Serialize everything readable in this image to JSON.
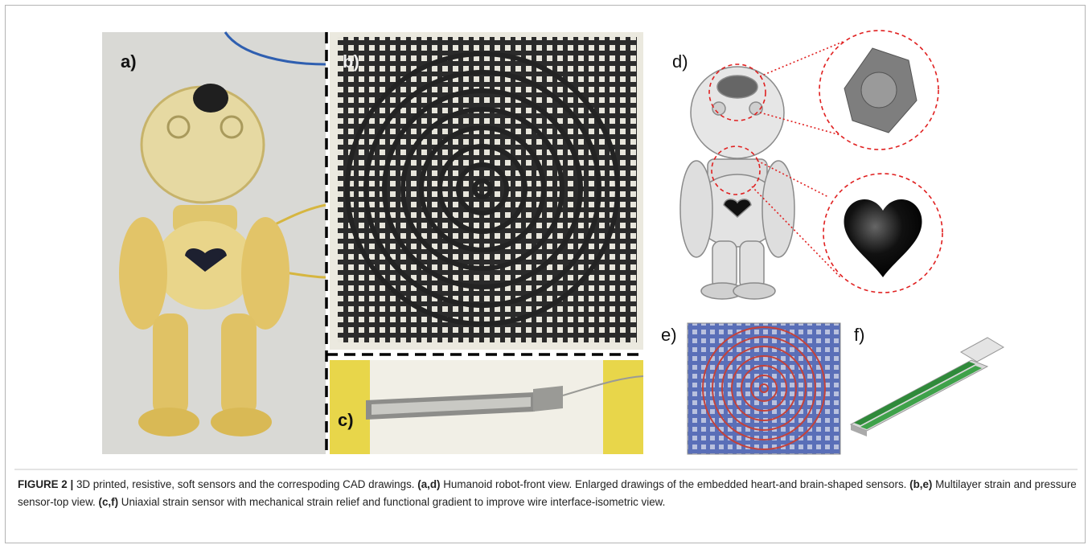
{
  "panels": [
    "a)",
    "b)",
    "c)",
    "d)",
    "e)",
    "f)"
  ],
  "caption": {
    "label": "FIGURE 2 |",
    "intro": "3D printed, resistive, soft sensors and the correspoding CAD drawings.",
    "items": [
      {
        "ref": "(a,d)",
        "text": "Humanoid robot-front view. Enlarged drawings of the embedded heart-and brain-shaped sensors."
      },
      {
        "ref": "(b,e)",
        "text": "Multilayer strain and pressure sensor-top view."
      },
      {
        "ref": "(c,f)",
        "text": "Uniaxial strain sensor with mechanical strain relief and functional gradient to improve wire interface-isometric view."
      }
    ]
  }
}
